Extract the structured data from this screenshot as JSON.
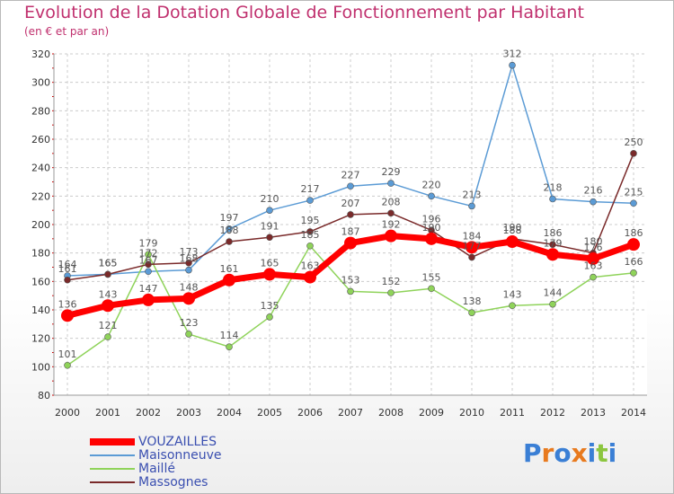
{
  "chart_data": {
    "type": "line",
    "title": "Evolution de la Dotation Globale de Fonctionnement par Habitant",
    "subtitle": "(en € et par an)",
    "xlabel": "",
    "ylabel": "",
    "ylim": [
      80,
      320
    ],
    "yticks": [
      80,
      100,
      120,
      140,
      160,
      180,
      200,
      220,
      240,
      260,
      280,
      300,
      320
    ],
    "x": [
      "2000",
      "2001",
      "2002",
      "2003",
      "2004",
      "2005",
      "2006",
      "2007",
      "2008",
      "2009",
      "2010",
      "2011",
      "2012",
      "2013",
      "2014"
    ],
    "grid": true,
    "legend_position": "bottom-left",
    "series": [
      {
        "name": "VOUZAILLES",
        "color": "#ff0000",
        "values": [
          136,
          143,
          147,
          148,
          161,
          165,
          163,
          187,
          192,
          190,
          184,
          188,
          179,
          176,
          186
        ]
      },
      {
        "name": "Maisonneuve",
        "color": "#5b9bd5",
        "values": [
          164,
          165,
          167,
          168,
          197,
          210,
          217,
          227,
          229,
          220,
          213,
          312,
          218,
          216,
          215
        ]
      },
      {
        "name": "Maillé",
        "color": "#8fd35a",
        "values": [
          101,
          121,
          179,
          123,
          114,
          135,
          185,
          153,
          152,
          155,
          138,
          143,
          144,
          163,
          166
        ]
      },
      {
        "name": "Massognes",
        "color": "#7a2a2a",
        "values": [
          161,
          165,
          172,
          173,
          188,
          191,
          195,
          207,
          208,
          196,
          177,
          190,
          186,
          180,
          250
        ]
      }
    ]
  },
  "logo": {
    "letters": [
      "P",
      "r",
      "o",
      "x",
      "i",
      "t",
      "i"
    ],
    "colors": [
      "#3a7fd5",
      "#e87a1e",
      "#3a7fd5",
      "#e87a1e",
      "#3a7fd5",
      "#8cc63f",
      "#3a7fd5"
    ]
  }
}
